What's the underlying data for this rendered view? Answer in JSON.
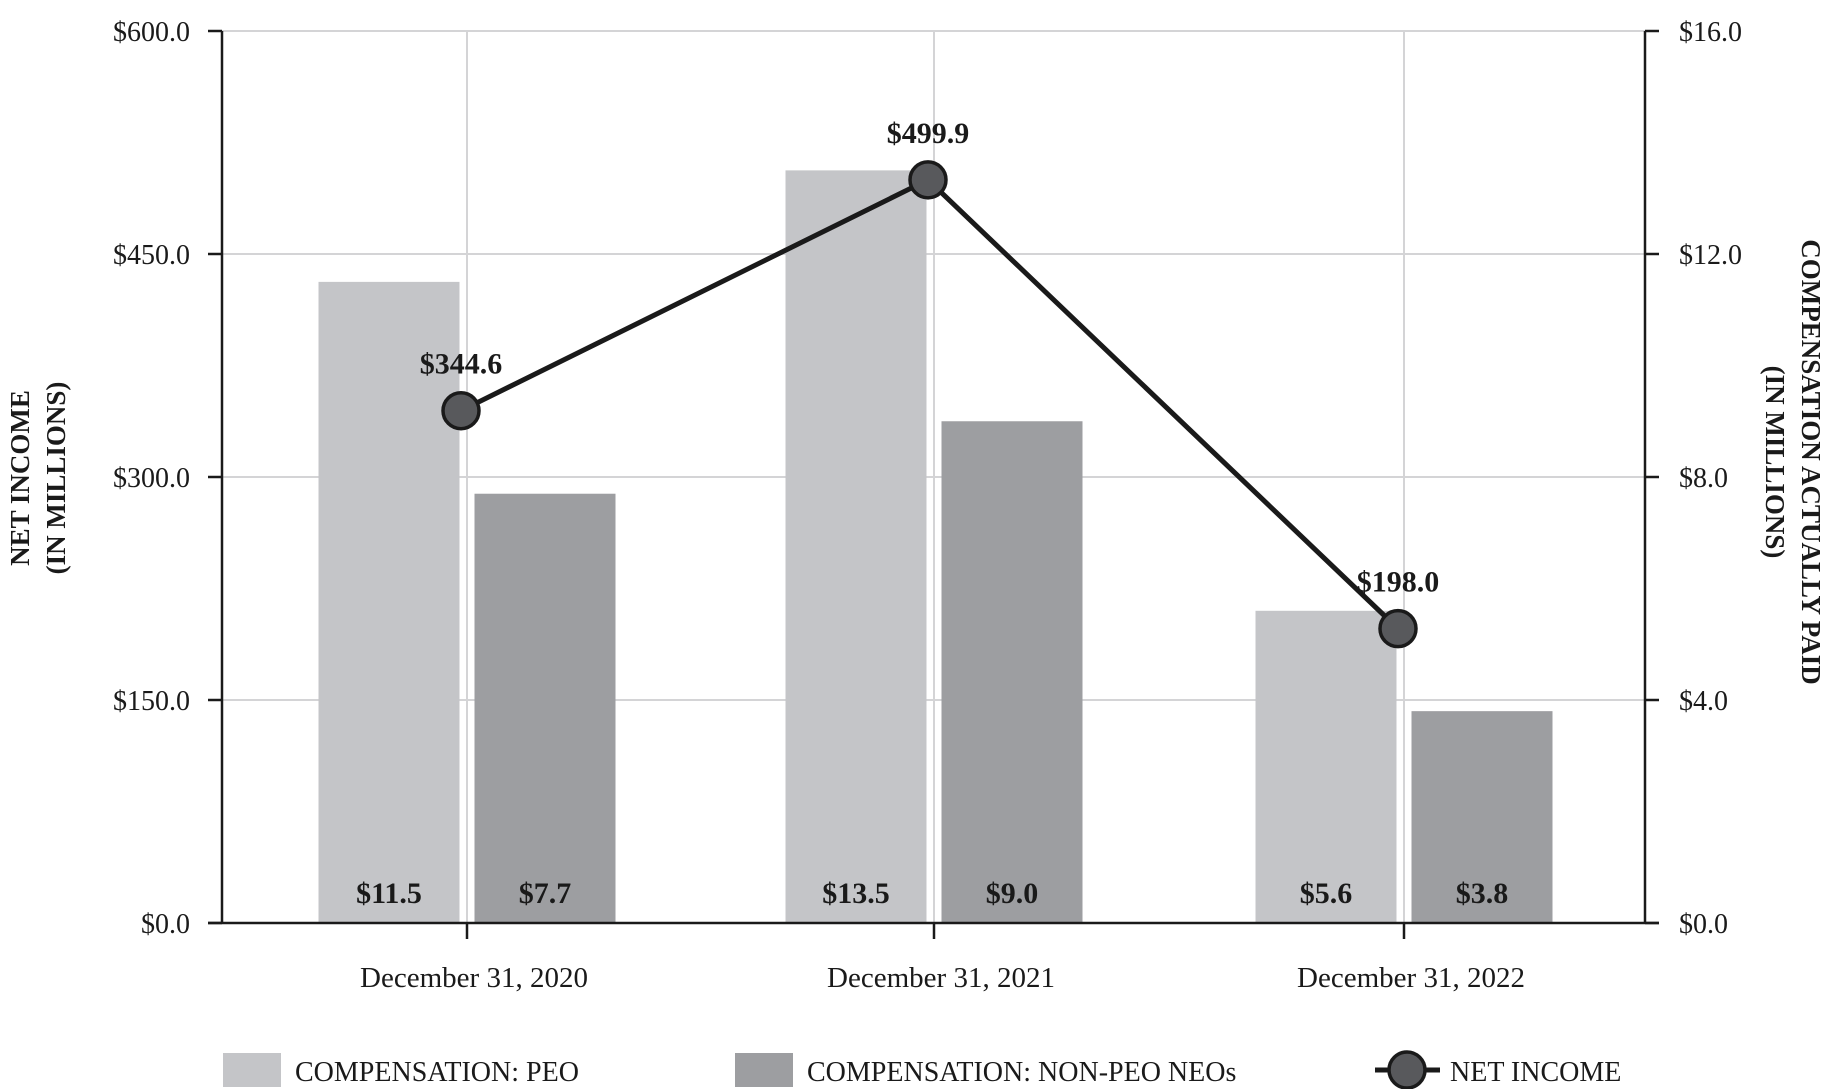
{
  "chart_data": {
    "type": "bar",
    "categories": [
      "December 31, 2020",
      "December 31, 2021",
      "December 31, 2022"
    ],
    "series": [
      {
        "name": "COMPENSATION: PEO",
        "axis": "right",
        "kind": "bar",
        "color": "#c4c5c8",
        "values": [
          11.5,
          13.5,
          5.6
        ],
        "labels": [
          "$11.5",
          "$13.5",
          "$5.6"
        ]
      },
      {
        "name": "COMPENSATION: NON-PEO NEOs",
        "axis": "right",
        "kind": "bar",
        "color": "#9d9ea1",
        "values": [
          7.7,
          9.0,
          3.8
        ],
        "labels": [
          "$7.7",
          "$9.0",
          "$3.8"
        ]
      },
      {
        "name": "NET INCOME",
        "axis": "left",
        "kind": "line",
        "color": "#1a1a1a",
        "marker_color": "#58595c",
        "values": [
          344.6,
          499.9,
          198.0
        ],
        "labels": [
          "$344.6",
          "$499.9",
          "$198.0"
        ]
      }
    ],
    "y_left": {
      "title_lines": [
        "NET INCOME",
        "(IN MILLIONS)"
      ],
      "ylim": [
        0,
        600
      ],
      "ticks": [
        0,
        150,
        300,
        450,
        600
      ],
      "tick_labels": [
        "$0.0",
        "$150.0",
        "$300.0",
        "$450.0",
        "$600.0"
      ]
    },
    "y_right": {
      "title_lines": [
        "COMPENSATION ACTUALLY PAID",
        "(IN MILLIONS)"
      ],
      "ylim": [
        0,
        16
      ],
      "ticks": [
        0,
        4,
        8,
        12,
        16
      ],
      "tick_labels": [
        "$0.0",
        "$4.0",
        "$8.0",
        "$12.0",
        "$16.0"
      ]
    },
    "grid": true,
    "legend_position": "bottom"
  }
}
